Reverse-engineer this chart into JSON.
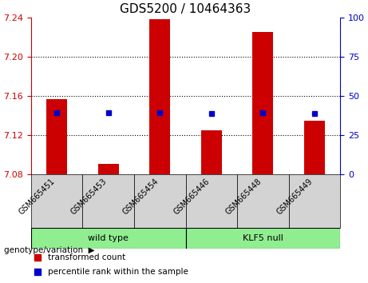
{
  "title": "GDS5200 / 10464363",
  "categories": [
    "GSM665451",
    "GSM665453",
    "GSM665454",
    "GSM665446",
    "GSM665448",
    "GSM665449"
  ],
  "red_values": [
    7.157,
    7.091,
    7.238,
    7.125,
    7.225,
    7.135
  ],
  "blue_values": [
    7.143,
    7.143,
    7.143,
    7.142,
    7.143,
    7.142
  ],
  "blue_percentiles": [
    35,
    35,
    35,
    35,
    35,
    35
  ],
  "ylim_left": [
    7.08,
    7.24
  ],
  "ylim_right": [
    0,
    100
  ],
  "yticks_left": [
    7.08,
    7.12,
    7.16,
    7.2,
    7.24
  ],
  "yticks_right": [
    0,
    25,
    50,
    75,
    100
  ],
  "baseline": 7.08,
  "groups": [
    {
      "label": "wild type",
      "start": 0,
      "end": 3,
      "color": "#90ee90"
    },
    {
      "label": "KLF5 null",
      "start": 3,
      "end": 6,
      "color": "#90ee90"
    }
  ],
  "group_label": "genotype/variation",
  "bar_color": "#cc0000",
  "blue_color": "#0000cc",
  "grid_color": "#000000",
  "background_plot": "#ffffff",
  "background_tick_area": "#d3d3d3",
  "title_fontsize": 11,
  "axis_fontsize": 9,
  "tick_fontsize": 8
}
